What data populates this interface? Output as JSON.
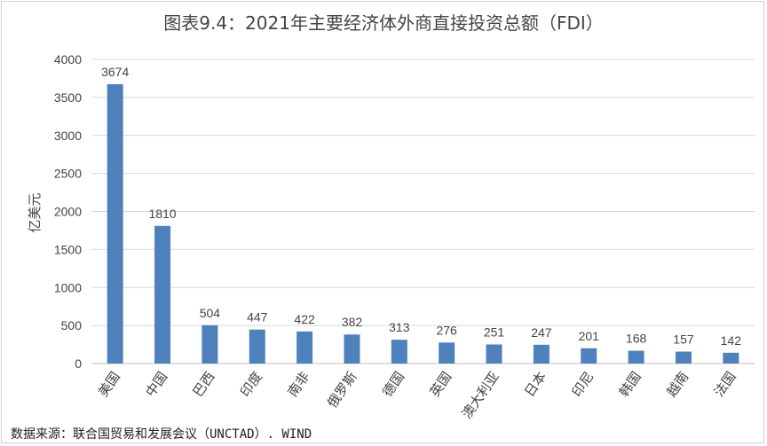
{
  "chart_data": {
    "type": "bar",
    "title": "图表9.4：2021年主要经济体外商直接投资总额（FDI）",
    "ylabel": "亿美元",
    "xlabel": "",
    "categories": [
      "美国",
      "中国",
      "巴西",
      "印度",
      "南非",
      "俄罗斯",
      "德国",
      "英国",
      "澳大利亚",
      "日本",
      "印尼",
      "韩国",
      "越南",
      "法国"
    ],
    "values": [
      3674,
      1810,
      504,
      447,
      422,
      382,
      313,
      276,
      251,
      247,
      201,
      168,
      157,
      142
    ],
    "ylim": [
      0,
      4000
    ],
    "yticks": [
      0,
      500,
      1000,
      1500,
      2000,
      2500,
      3000,
      3500,
      4000
    ],
    "grid": true,
    "bar_color": "#4F81BD",
    "source": "数据来源：联合国贸易和发展会议（UNCTAD）. WIND"
  }
}
